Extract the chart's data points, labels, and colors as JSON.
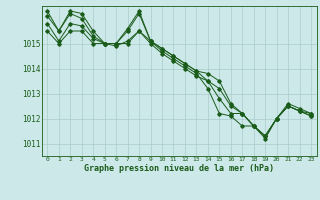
{
  "x": [
    0,
    1,
    2,
    3,
    4,
    5,
    6,
    7,
    8,
    9,
    10,
    11,
    12,
    13,
    14,
    15,
    16,
    17,
    18,
    19,
    20,
    21,
    22,
    23
  ],
  "series1": [
    1015.8,
    1015.1,
    1015.8,
    1015.7,
    1015.2,
    1015.0,
    1014.9,
    1015.1,
    1015.5,
    1015.0,
    1014.6,
    1014.3,
    1014.0,
    1013.7,
    1013.5,
    1012.8,
    1012.2,
    1012.2,
    1011.7,
    1011.2,
    1012.0,
    1012.5,
    1012.3,
    1012.2
  ],
  "series2": [
    1016.1,
    1015.5,
    1016.2,
    1016.0,
    1015.3,
    1015.0,
    1015.0,
    1015.5,
    1016.2,
    1015.1,
    1014.8,
    1014.5,
    1014.2,
    1013.9,
    1013.5,
    1013.2,
    1012.5,
    1012.2,
    1011.7,
    1011.3,
    1012.0,
    1012.6,
    1012.4,
    1012.2
  ],
  "series3": [
    1016.3,
    1015.5,
    1016.3,
    1016.2,
    1015.5,
    1015.0,
    1015.0,
    1015.6,
    1016.3,
    1015.1,
    1014.8,
    1014.5,
    1014.2,
    1013.9,
    1013.8,
    1013.5,
    1012.6,
    1012.2,
    1011.7,
    1011.3,
    1012.0,
    1012.5,
    1012.3,
    1012.1
  ],
  "series4": [
    1015.5,
    1015.0,
    1015.5,
    1015.5,
    1015.0,
    1015.0,
    1015.0,
    1015.0,
    1015.5,
    1015.1,
    1014.7,
    1014.4,
    1014.1,
    1013.8,
    1013.2,
    1012.2,
    1012.1,
    1011.7,
    1011.7,
    1011.3,
    1012.0,
    1012.5,
    1012.3,
    1012.1
  ],
  "bg_color": "#cce8e8",
  "line_color": "#1a5c1a",
  "grid_color": "#aacccc",
  "xlabel": "Graphe pression niveau de la mer (hPa)",
  "xlim": [
    -0.5,
    23.5
  ],
  "ylim": [
    1010.5,
    1016.5
  ],
  "yticks": [
    1011,
    1012,
    1013,
    1014,
    1015
  ],
  "xticks": [
    0,
    1,
    2,
    3,
    4,
    5,
    6,
    7,
    8,
    9,
    10,
    11,
    12,
    13,
    14,
    15,
    16,
    17,
    18,
    19,
    20,
    21,
    22,
    23
  ]
}
